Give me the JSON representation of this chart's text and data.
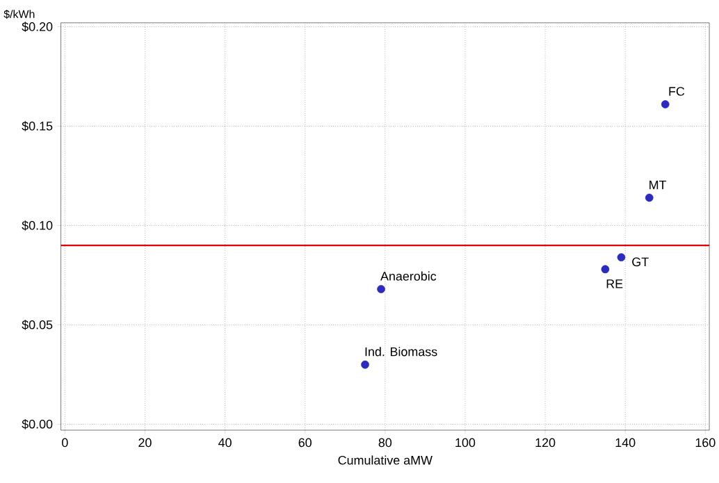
{
  "chart_data": {
    "type": "scatter",
    "xlabel": "Cumulative aMW",
    "ylabel": "$/kWh",
    "x": [
      150,
      146,
      139,
      135,
      79,
      75
    ],
    "values": [
      0.161,
      0.114,
      0.084,
      0.078,
      0.068,
      0.03
    ],
    "color": "#2b2bbf",
    "marker": "circle",
    "xlim": [
      -1,
      161
    ],
    "ylim": [
      -0.003,
      0.202
    ],
    "xticks": [
      0,
      20,
      40,
      60,
      80,
      100,
      120,
      140,
      160
    ],
    "yticks": [
      {
        "value": 0,
        "label": "$0.00"
      },
      {
        "value": 0.05,
        "label": "$0.05"
      },
      {
        "value": 0.1,
        "label": "$0.10"
      },
      {
        "value": 0.15,
        "label": "$0.15"
      },
      {
        "value": 0.2,
        "label": "$0.20"
      }
    ],
    "grid": true,
    "ref_lines": [
      {
        "axis": "y",
        "value": 0.09,
        "color": "#e00000"
      }
    ],
    "annotations": [
      {
        "text": "FC",
        "x": 150,
        "y": 0.161
      },
      {
        "text": "MT",
        "x": 146,
        "y": 0.114
      },
      {
        "text": "GT",
        "x": 139,
        "y": 0.084
      },
      {
        "text": "RE",
        "x": 135,
        "y": 0.078
      },
      {
        "text": "Anaerobic",
        "x": 79,
        "y": 0.068
      },
      {
        "text": "Ind. Biomass",
        "x": 75,
        "y": 0.03
      }
    ]
  }
}
